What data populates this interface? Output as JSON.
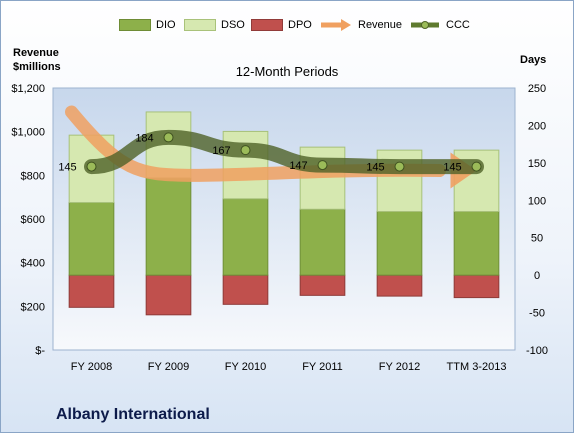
{
  "chart_data": {
    "type": "bar",
    "title": "12-Month Periods",
    "company": "Albany International",
    "categories": [
      "FY 2008",
      "FY 2009",
      "FY 2010",
      "FY 2011",
      "FY 2012",
      "TTM 3-2013"
    ],
    "left_axis": {
      "title_line1": "Revenue",
      "title_line2": "$millions",
      "ylim": [
        0,
        1200
      ],
      "ticks": [
        "$-",
        "$200",
        "$400",
        "$600",
        "$800",
        "$1,000",
        "$1,200"
      ]
    },
    "right_axis": {
      "title": "Days",
      "ylim": [
        -100,
        250
      ],
      "ticks": [
        "-100",
        "-50",
        "0",
        "50",
        "100",
        "150",
        "200",
        "250"
      ]
    },
    "legend": [
      {
        "name": "DIO",
        "color": "#8db04a",
        "kind": "bar"
      },
      {
        "name": "DSO",
        "color": "#d6e8b0",
        "kind": "bar"
      },
      {
        "name": "DPO",
        "color": "#c0504d",
        "kind": "bar"
      },
      {
        "name": "Revenue",
        "color": "#f0a060",
        "kind": "arrow"
      },
      {
        "name": "CCC",
        "color": "#5e7a2e",
        "kind": "line"
      }
    ],
    "series": [
      {
        "name": "DIO",
        "values": [
          97,
          130,
          102,
          88,
          85,
          85
        ]
      },
      {
        "name": "DSO",
        "values": [
          90,
          88,
          90,
          83,
          82,
          82
        ]
      },
      {
        "name": "DPO",
        "values": [
          -43,
          -53,
          -39,
          -27,
          -28,
          -30
        ]
      },
      {
        "name": "Revenue",
        "values": [
          1090,
          1010,
          930,
          850,
          810,
          820
        ]
      },
      {
        "name": "CCC",
        "values": [
          145,
          184,
          167,
          147,
          145,
          145
        ]
      }
    ],
    "ccc_labels": [
      "145",
      "184",
      "167",
      "147",
      "145",
      "145"
    ],
    "grid": false,
    "legend_position": "top"
  }
}
